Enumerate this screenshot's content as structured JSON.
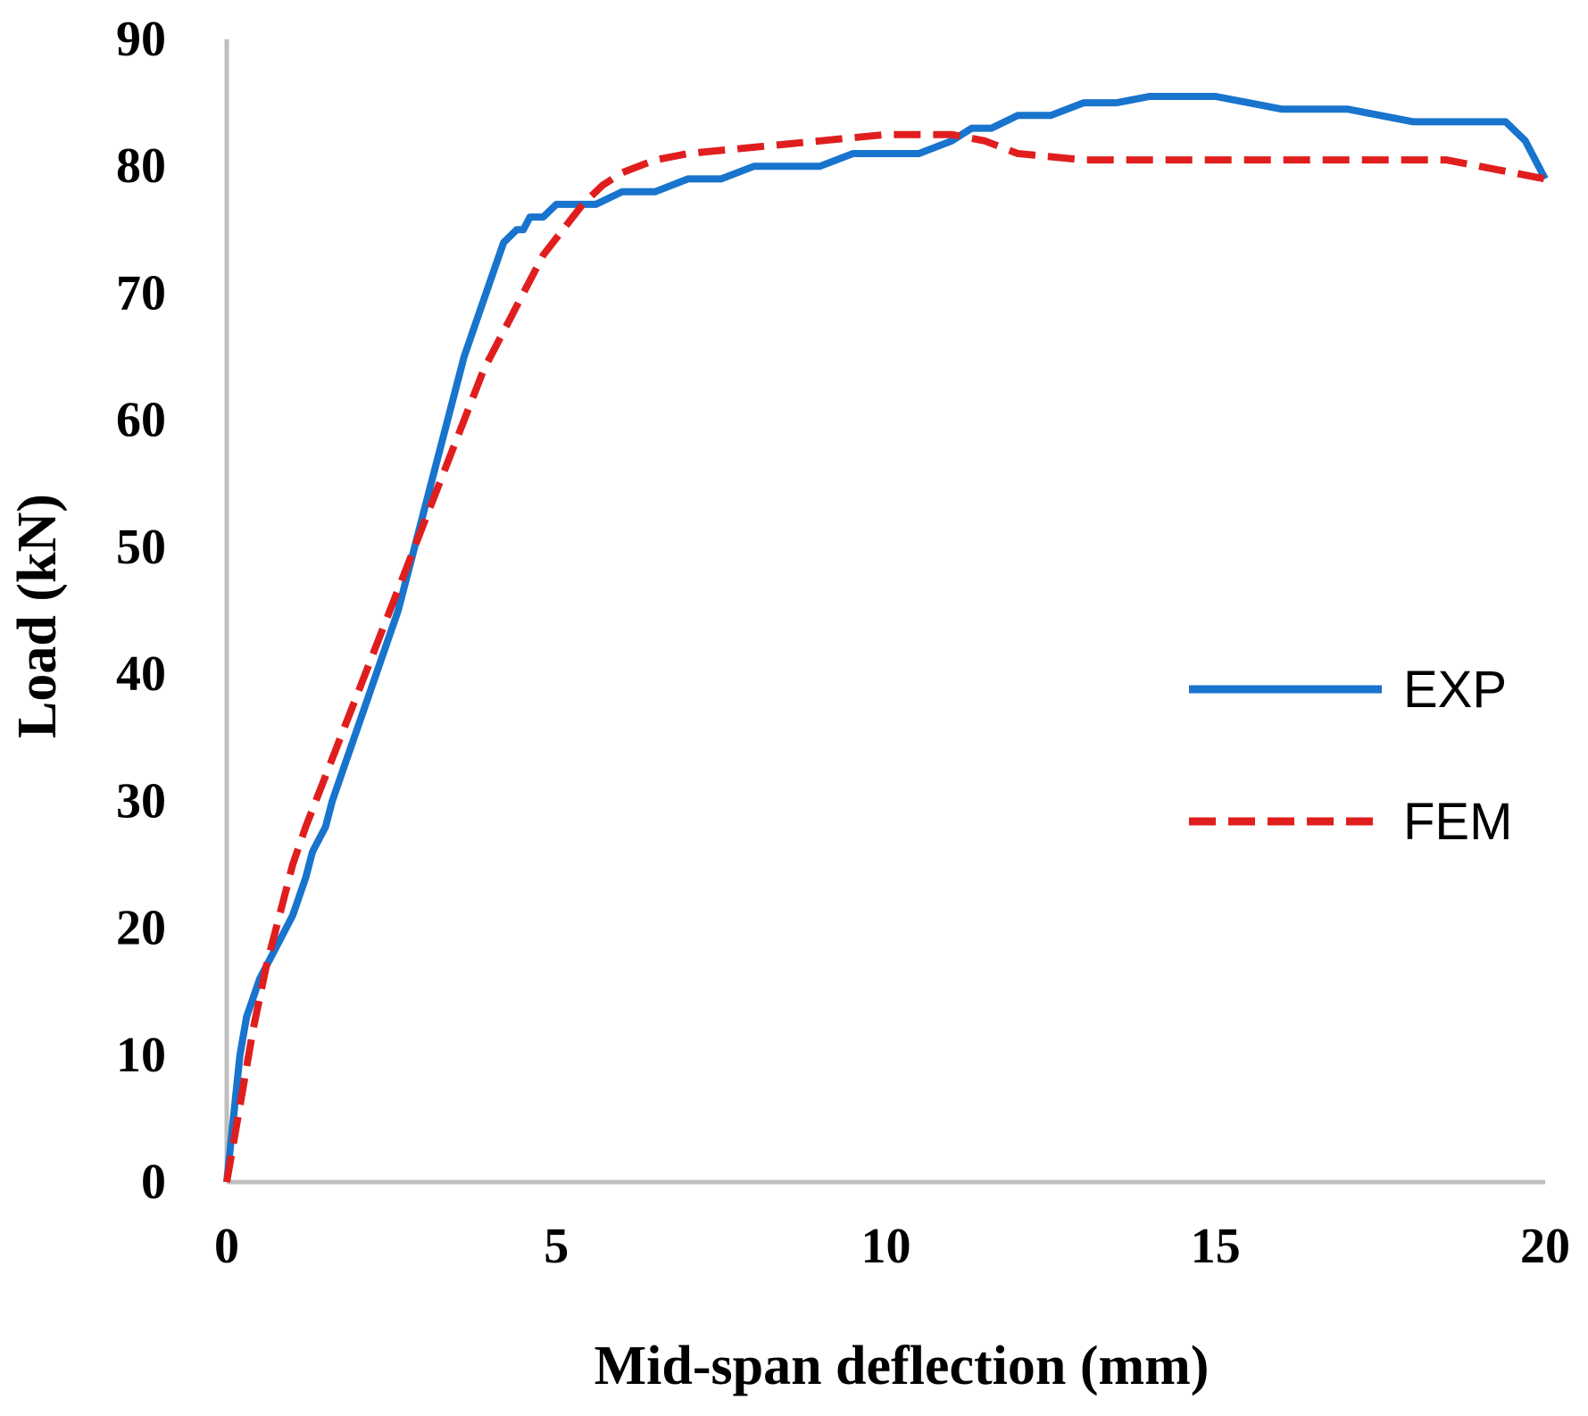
{
  "chart_data": {
    "type": "line",
    "title": "",
    "xlabel": "Mid-span deflection (mm)",
    "ylabel": "Load (kN)",
    "xlim": [
      0,
      20
    ],
    "ylim": [
      0,
      90
    ],
    "xticks": [
      0,
      5,
      10,
      15,
      20
    ],
    "yticks": [
      0,
      10,
      20,
      30,
      40,
      50,
      60,
      70,
      80,
      90
    ],
    "xtick_labels": [
      "0",
      "5",
      "10",
      "15",
      "20"
    ],
    "ytick_labels": [
      "0",
      "10",
      "20",
      "30",
      "40",
      "50",
      "60",
      "70",
      "80",
      "90"
    ],
    "grid": false,
    "legend_position": "right",
    "series": [
      {
        "name": "EXP",
        "color": "#1874CD",
        "style": "solid",
        "x": [
          0,
          0.1,
          0.2,
          0.3,
          0.5,
          0.6,
          0.8,
          1.0,
          1.2,
          1.3,
          1.5,
          1.6,
          1.8,
          2.0,
          2.2,
          2.4,
          2.6,
          2.8,
          3.0,
          3.2,
          3.4,
          3.6,
          3.8,
          4.0,
          4.2,
          4.4,
          4.5,
          4.6,
          4.8,
          5.0,
          5.2,
          5.4,
          5.6,
          6.0,
          6.5,
          7.0,
          7.5,
          8.0,
          8.5,
          9.0,
          9.5,
          10.0,
          10.5,
          11.0,
          11.3,
          11.6,
          12.0,
          12.5,
          13.0,
          13.5,
          14.0,
          14.5,
          15.0,
          15.5,
          16.0,
          16.5,
          17.0,
          17.5,
          18.0,
          18.5,
          19.0,
          19.4,
          19.7,
          19.9,
          20.0
        ],
        "values": [
          0,
          5,
          10,
          13,
          16,
          17,
          19,
          21,
          24,
          26,
          28,
          30,
          33,
          36,
          39,
          42,
          45,
          49,
          53,
          57,
          61,
          65,
          68,
          71,
          74,
          75,
          75,
          76,
          76,
          77,
          77,
          77,
          77,
          78,
          78,
          79,
          79,
          80,
          80,
          80,
          81,
          81,
          81,
          82,
          83,
          83,
          84,
          84,
          85,
          85,
          85.5,
          85.5,
          85.5,
          85,
          84.5,
          84.5,
          84.5,
          84,
          83.5,
          83.5,
          83.5,
          83.5,
          82,
          80,
          79
        ]
      },
      {
        "name": "FEM",
        "color": "#E01E1E",
        "style": "dashed",
        "x": [
          0,
          0.2,
          0.4,
          0.6,
          0.8,
          1.0,
          1.2,
          1.5,
          1.8,
          2.1,
          2.4,
          2.7,
          3.0,
          3.3,
          3.6,
          3.9,
          4.2,
          4.5,
          4.8,
          5.1,
          5.4,
          5.7,
          6.0,
          6.5,
          7.0,
          8.0,
          9.0,
          10.0,
          10.5,
          11.0,
          11.5,
          12.0,
          13.0,
          14.0,
          15.0,
          16.0,
          17.0,
          18.0,
          18.5,
          19.0,
          19.5,
          20.0
        ],
        "values": [
          0,
          6,
          12,
          17,
          21,
          25,
          28,
          32,
          36,
          40,
          44,
          48,
          52,
          56,
          60,
          64,
          67,
          70,
          73,
          75,
          77,
          78.5,
          79.5,
          80.5,
          81,
          81.5,
          82,
          82.5,
          82.5,
          82.5,
          82,
          81,
          80.5,
          80.5,
          80.5,
          80.5,
          80.5,
          80.5,
          80.5,
          80,
          79.5,
          79
        ]
      }
    ]
  }
}
